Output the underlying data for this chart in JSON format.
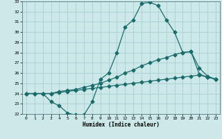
{
  "xlabel": "Humidex (Indice chaleur)",
  "ylabel": "",
  "background_color": "#cce8e8",
  "line_color": "#1a6b6b",
  "grid_color": "#aad0d0",
  "xlim": [
    -0.5,
    23.5
  ],
  "ylim": [
    22,
    33
  ],
  "xticks": [
    0,
    1,
    2,
    3,
    4,
    5,
    6,
    7,
    8,
    9,
    10,
    11,
    12,
    13,
    14,
    15,
    16,
    17,
    18,
    19,
    20,
    21,
    22,
    23
  ],
  "yticks": [
    22,
    23,
    24,
    25,
    26,
    27,
    28,
    29,
    30,
    31,
    32,
    33
  ],
  "line1_x": [
    0,
    1,
    2,
    3,
    4,
    5,
    6,
    7,
    8,
    9,
    10,
    11,
    12,
    13,
    14,
    15,
    16,
    17,
    18,
    19,
    20,
    21,
    22,
    23
  ],
  "line1_y": [
    24.0,
    24.0,
    24.0,
    23.2,
    22.8,
    22.1,
    21.9,
    21.9,
    23.2,
    25.4,
    26.0,
    28.0,
    30.5,
    31.2,
    32.8,
    32.9,
    32.6,
    31.2,
    30.0,
    28.0,
    28.1,
    26.5,
    25.7,
    25.4
  ],
  "line2_x": [
    0,
    1,
    2,
    3,
    4,
    5,
    6,
    7,
    8,
    9,
    10,
    11,
    12,
    13,
    14,
    15,
    16,
    17,
    18,
    19,
    20,
    21,
    22,
    23
  ],
  "line2_y": [
    24.0,
    24.0,
    24.0,
    24.0,
    24.2,
    24.3,
    24.4,
    24.6,
    24.8,
    25.0,
    25.3,
    25.6,
    26.0,
    26.3,
    26.7,
    27.0,
    27.3,
    27.5,
    27.8,
    28.0,
    28.1,
    25.9,
    25.6,
    25.4
  ],
  "line3_x": [
    0,
    1,
    2,
    3,
    4,
    5,
    6,
    7,
    8,
    9,
    10,
    11,
    12,
    13,
    14,
    15,
    16,
    17,
    18,
    19,
    20,
    21,
    22,
    23
  ],
  "line3_y": [
    24.0,
    24.0,
    24.0,
    24.0,
    24.1,
    24.2,
    24.3,
    24.4,
    24.5,
    24.6,
    24.7,
    24.8,
    24.9,
    25.0,
    25.1,
    25.2,
    25.3,
    25.4,
    25.5,
    25.6,
    25.7,
    25.8,
    25.6,
    25.4
  ],
  "markersize": 2.5,
  "linewidth": 0.9
}
